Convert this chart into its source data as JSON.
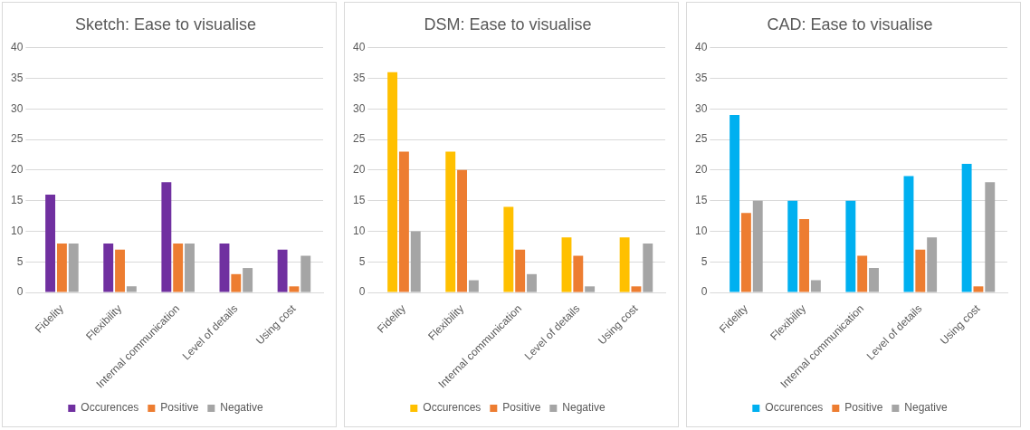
{
  "chart_data": [
    {
      "type": "bar",
      "title": "Sketch: Ease to visualise",
      "categories": [
        "Fidelity",
        "Flexibility",
        "Internal communication",
        "Level of details",
        "Using cost"
      ],
      "series": [
        {
          "name": "Occurences",
          "color": "#7030a0",
          "values": [
            16,
            8,
            18,
            8,
            7
          ]
        },
        {
          "name": "Positive",
          "color": "#ed7d31",
          "values": [
            8,
            7,
            8,
            3,
            1
          ]
        },
        {
          "name": "Negative",
          "color": "#a5a5a5",
          "values": [
            8,
            1,
            8,
            4,
            6
          ]
        }
      ],
      "ylim": [
        0,
        40
      ],
      "yticks": [
        0,
        5,
        10,
        15,
        20,
        25,
        30,
        35,
        40
      ],
      "grid": "y",
      "legend": "bottom"
    },
    {
      "type": "bar",
      "title": "DSM: Ease to visualise",
      "categories": [
        "Fidelity",
        "Flexibility",
        "Internal communication",
        "Level of details",
        "Using cost"
      ],
      "series": [
        {
          "name": "Occurences",
          "color": "#ffc000",
          "values": [
            36,
            23,
            14,
            9,
            9
          ]
        },
        {
          "name": "Positive",
          "color": "#ed7d31",
          "values": [
            23,
            20,
            7,
            6,
            1
          ]
        },
        {
          "name": "Negative",
          "color": "#a5a5a5",
          "values": [
            10,
            2,
            3,
            1,
            8
          ]
        }
      ],
      "ylim": [
        0,
        40
      ],
      "yticks": [
        0,
        5,
        10,
        15,
        20,
        25,
        30,
        35,
        40
      ],
      "grid": "y",
      "legend": "bottom"
    },
    {
      "type": "bar",
      "title": "CAD: Ease to visualise",
      "categories": [
        "Fidelity",
        "Flexibility",
        "Internal communication",
        "Level of details",
        "Using cost"
      ],
      "series": [
        {
          "name": "Occurences",
          "color": "#00b0f0",
          "values": [
            29,
            15,
            15,
            19,
            21
          ]
        },
        {
          "name": "Positive",
          "color": "#ed7d31",
          "values": [
            13,
            12,
            6,
            7,
            1
          ]
        },
        {
          "name": "Negative",
          "color": "#a5a5a5",
          "values": [
            15,
            2,
            4,
            9,
            18
          ]
        }
      ],
      "ylim": [
        0,
        40
      ],
      "yticks": [
        0,
        5,
        10,
        15,
        20,
        25,
        30,
        35,
        40
      ],
      "grid": "y",
      "legend": "bottom"
    }
  ]
}
